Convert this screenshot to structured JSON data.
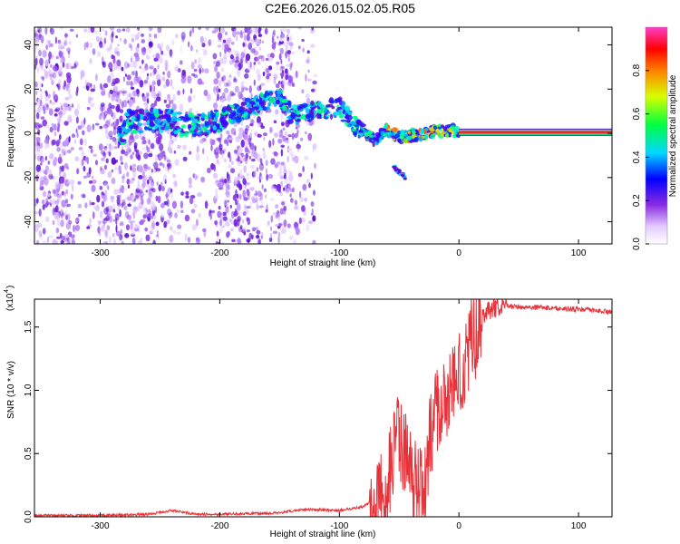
{
  "title": "C2E6.2026.015.02.05.R05",
  "chart_data": [
    {
      "type": "heatmap",
      "title": "C2E6.2026.015.02.05.R05",
      "xlabel": "Height of straight line (km)",
      "ylabel": "Frequency (Hz)",
      "xlim": [
        -355,
        128
      ],
      "ylim": [
        -50,
        48
      ],
      "xticks": [
        -300,
        -200,
        -100,
        0,
        100
      ],
      "yticks": [
        -40,
        -20,
        0,
        20,
        40
      ],
      "colorbar": {
        "label": "Normalized spectral amplitude",
        "range": [
          0,
          1
        ],
        "ticks": [
          "0.0",
          "0.2",
          "0.4",
          "0.6",
          "0.8"
        ]
      },
      "noise_region_x": [
        -355,
        -120
      ],
      "bright_track": [
        {
          "x": -280,
          "y": 5
        },
        {
          "x": -260,
          "y": 6
        },
        {
          "x": -240,
          "y": 5
        },
        {
          "x": -220,
          "y": 3
        },
        {
          "x": -210,
          "y": 4
        },
        {
          "x": -150,
          "y": 17
        },
        {
          "x": -140,
          "y": 8
        },
        {
          "x": -120,
          "y": 10
        },
        {
          "x": -100,
          "y": 12
        },
        {
          "x": -90,
          "y": 5
        },
        {
          "x": -80,
          "y": 0
        },
        {
          "x": -70,
          "y": -3
        },
        {
          "x": -60,
          "y": 2
        },
        {
          "x": -50,
          "y": -2
        },
        {
          "x": -40,
          "y": -1
        },
        {
          "x": -30,
          "y": 0
        },
        {
          "x": -20,
          "y": 1
        },
        {
          "x": -10,
          "y": 1
        },
        {
          "x": 0,
          "y": 1
        },
        {
          "x": 128,
          "y": 0
        }
      ],
      "secondary_track": [
        {
          "x": -55,
          "y": -15
        },
        {
          "x": -45,
          "y": -20
        }
      ]
    },
    {
      "type": "line",
      "xlabel": "Height of straight line (km)",
      "ylabel": "SNR (10 * v/v)",
      "y_multiplier_label": "(x10",
      "y_multiplier_exp": "4",
      "xlim": [
        -355,
        128
      ],
      "ylim": [
        0,
        1.72
      ],
      "xticks": [
        -300,
        -200,
        -100,
        0,
        100
      ],
      "yticks": [
        "0.0",
        "0.5",
        "1.0",
        "1.5"
      ],
      "series": [
        {
          "color": "#e8323a",
          "x": [
            -355,
            -300,
            -260,
            -240,
            -220,
            -200,
            -150,
            -130,
            -100,
            -80,
            -70,
            -60,
            -55,
            -50,
            -45,
            -40,
            -35,
            -30,
            -25,
            -20,
            -15,
            -10,
            -5,
            0,
            5,
            10,
            20,
            30,
            40,
            50,
            80,
            100,
            128
          ],
          "y": [
            0.01,
            0.01,
            0.02,
            0.05,
            0.02,
            0.02,
            0.03,
            0.06,
            0.05,
            0.08,
            0.15,
            0.3,
            0.6,
            0.7,
            0.55,
            0.4,
            0.3,
            0.25,
            0.65,
            0.9,
            0.95,
            1.0,
            1.1,
            1.2,
            1.3,
            1.45,
            1.6,
            1.65,
            1.67,
            1.66,
            1.65,
            1.64,
            1.62
          ]
        }
      ]
    }
  ]
}
